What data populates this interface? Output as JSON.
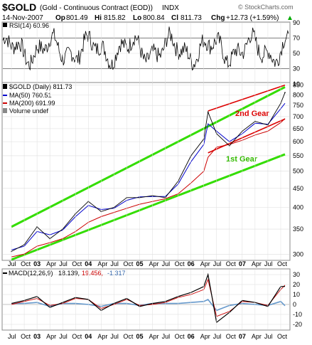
{
  "header": {
    "symbol": "$GOLD",
    "description": "(Gold - Continuous Contract (EOD))",
    "exchange": "INDX",
    "date": "14-Nov-2007",
    "open_label": "Op",
    "open": "801.49",
    "high_label": "Hi",
    "high": "815.82",
    "low_label": "Lo",
    "low": "800.84",
    "close_label": "Cl",
    "close": "811.73",
    "change_label": "Chg",
    "change": "+12.73 (+1.59%)",
    "up_arrow": "▲",
    "watermark": "© StockCharts.com"
  },
  "chart_data": [
    {
      "panel": "rsi",
      "type": "line",
      "title": "RSI(14) 60.96",
      "ylim": [
        10,
        90
      ],
      "y_ticks": [
        "90",
        "70",
        "50",
        "30",
        "10"
      ],
      "reference_lines": [
        70,
        30
      ],
      "color": "#000000",
      "current_value": 60.96
    },
    {
      "panel": "price",
      "type": "line",
      "title": "$GOLD (Daily) 811.73",
      "scale": "log",
      "ylim": [
        290,
        860
      ],
      "y_ticks": [
        "850",
        "800",
        "750",
        "700",
        "650",
        "600",
        "550",
        "500",
        "450",
        "400",
        "350",
        "300"
      ],
      "y_tick_values": [
        850,
        800,
        750,
        700,
        650,
        600,
        550,
        500,
        450,
        400,
        350,
        300
      ],
      "legend": [
        {
          "label": "$GOLD (Daily) 811.73",
          "color": "#000000",
          "kind": "bar"
        },
        {
          "label": "MA(50) 760.51",
          "color": "#0000cc",
          "kind": "line"
        },
        {
          "label": "MA(200) 691.99",
          "color": "#cc0000",
          "kind": "line"
        },
        {
          "label": "Volume undef",
          "color": "#888888",
          "kind": "bar"
        }
      ],
      "x_dates": [
        "2002-07",
        "2002-10",
        "2003-01",
        "2003-04",
        "2003-07",
        "2003-10",
        "2004-01",
        "2004-04",
        "2004-07",
        "2004-10",
        "2005-01",
        "2005-04",
        "2005-07",
        "2005-10",
        "2006-01",
        "2006-04",
        "2006-05",
        "2006-07",
        "2006-10",
        "2007-01",
        "2007-04",
        "2007-07",
        "2007-10",
        "2007-11"
      ],
      "series": [
        {
          "name": "$GOLD (Daily)",
          "color": "#000000",
          "values": [
            305,
            318,
            355,
            330,
            350,
            385,
            415,
            390,
            400,
            425,
            425,
            430,
            425,
            470,
            550,
            610,
            720,
            630,
            585,
            640,
            680,
            665,
            760,
            812
          ]
        },
        {
          "name": "MA(50)",
          "color": "#0000cc",
          "values": [
            308,
            315,
            345,
            338,
            348,
            378,
            405,
            395,
            398,
            418,
            427,
            428,
            428,
            462,
            530,
            590,
            670,
            640,
            600,
            630,
            672,
            668,
            735,
            760
          ]
        },
        {
          "name": "MA(200)",
          "color": "#cc0000",
          "values": [
            295,
            300,
            315,
            322,
            330,
            345,
            365,
            378,
            388,
            398,
            408,
            415,
            422,
            435,
            465,
            500,
            545,
            580,
            590,
            605,
            625,
            640,
            675,
            692
          ]
        }
      ],
      "trend_channels": [
        {
          "label": "1st Gear",
          "color": "#33dd00",
          "line": "upper",
          "from": [
            "2002-07",
            355
          ],
          "to": [
            "2007-11",
            840
          ]
        },
        {
          "label": "1st Gear",
          "color": "#33dd00",
          "line": "lower",
          "from": [
            "2002-07",
            290
          ],
          "to": [
            "2007-11",
            555
          ]
        },
        {
          "label": "2nd Gear",
          "color": "#dd0000",
          "line": "upper",
          "from": [
            "2006-05",
            725
          ],
          "to": [
            "2007-11",
            850
          ]
        },
        {
          "label": "2nd Gear",
          "color": "#dd0000",
          "line": "lower",
          "from": [
            "2006-05",
            560
          ],
          "to": [
            "2007-11",
            690
          ]
        }
      ],
      "annotations": [
        {
          "text": "2nd Gear",
          "color": "#dd0000"
        },
        {
          "text": "1st Gear",
          "color": "#33bb00"
        }
      ]
    },
    {
      "panel": "macd",
      "type": "line",
      "title": "MACD(12,26,9) 18.139, 19.456, -1.317",
      "title_parts": {
        "name": "MACD(12,26,9)",
        "macd": "18.139,",
        "signal": "19.456,",
        "hist": "-1.317"
      },
      "ylim": [
        -25,
        35
      ],
      "y_ticks": [
        "30",
        "20",
        "10",
        "0",
        "-10",
        "-20"
      ],
      "y_tick_values": [
        30,
        20,
        10,
        0,
        -10,
        -20
      ],
      "x_dates": [
        "2002-07",
        "2002-10",
        "2003-01",
        "2003-04",
        "2003-07",
        "2003-10",
        "2004-01",
        "2004-04",
        "2004-07",
        "2004-10",
        "2005-01",
        "2005-04",
        "2005-07",
        "2005-10",
        "2006-01",
        "2006-04",
        "2006-05",
        "2006-07",
        "2006-10",
        "2007-01",
        "2007-04",
        "2007-07",
        "2007-10",
        "2007-11"
      ],
      "series": [
        {
          "name": "MACD",
          "color": "#000000",
          "values": [
            1,
            4,
            8,
            -3,
            2,
            7,
            5,
            -6,
            1,
            6,
            -2,
            1,
            3,
            8,
            12,
            18,
            30,
            -18,
            -8,
            4,
            2,
            -2,
            18,
            18.139
          ]
        },
        {
          "name": "Signal",
          "color": "#cc0000",
          "values": [
            0,
            3,
            6,
            -1,
            1,
            6,
            5,
            -4,
            0,
            5,
            -1,
            0,
            2,
            7,
            10,
            15,
            25,
            -12,
            -7,
            3,
            2,
            -1,
            15,
            19.456
          ]
        },
        {
          "name": "Histogram",
          "color": "#6699cc",
          "values": [
            1,
            1,
            2,
            -2,
            1,
            1,
            0,
            -2,
            1,
            1,
            -1,
            1,
            1,
            1,
            2,
            3,
            5,
            -6,
            -1,
            1,
            0,
            -1,
            3,
            -1.317
          ]
        }
      ]
    }
  ],
  "x_axis": {
    "labels": [
      {
        "text": "Jul",
        "bold": false
      },
      {
        "text": "Oct",
        "bold": false
      },
      {
        "text": "03",
        "bold": true
      },
      {
        "text": "Apr",
        "bold": false
      },
      {
        "text": "Jul",
        "bold": false
      },
      {
        "text": "Oct",
        "bold": false
      },
      {
        "text": "04",
        "bold": true
      },
      {
        "text": "Apr",
        "bold": false
      },
      {
        "text": "Jul",
        "bold": false
      },
      {
        "text": "Oct",
        "bold": false
      },
      {
        "text": "05",
        "bold": true
      },
      {
        "text": "Apr",
        "bold": false
      },
      {
        "text": "Jul",
        "bold": false
      },
      {
        "text": "Oct",
        "bold": false
      },
      {
        "text": "06",
        "bold": true
      },
      {
        "text": "Apr",
        "bold": false
      },
      {
        "text": "Jul",
        "bold": false
      },
      {
        "text": "Oct",
        "bold": false
      },
      {
        "text": "07",
        "bold": true
      },
      {
        "text": "Apr",
        "bold": false
      },
      {
        "text": "Jul",
        "bold": false
      },
      {
        "text": "Oct",
        "bold": false
      }
    ]
  },
  "colors": {
    "gear1": "#33dd00",
    "gear2": "#dd0000",
    "ma50": "#0000cc",
    "ma200": "#cc0000",
    "grid": "#dddddd",
    "panel_border": "#888888"
  }
}
